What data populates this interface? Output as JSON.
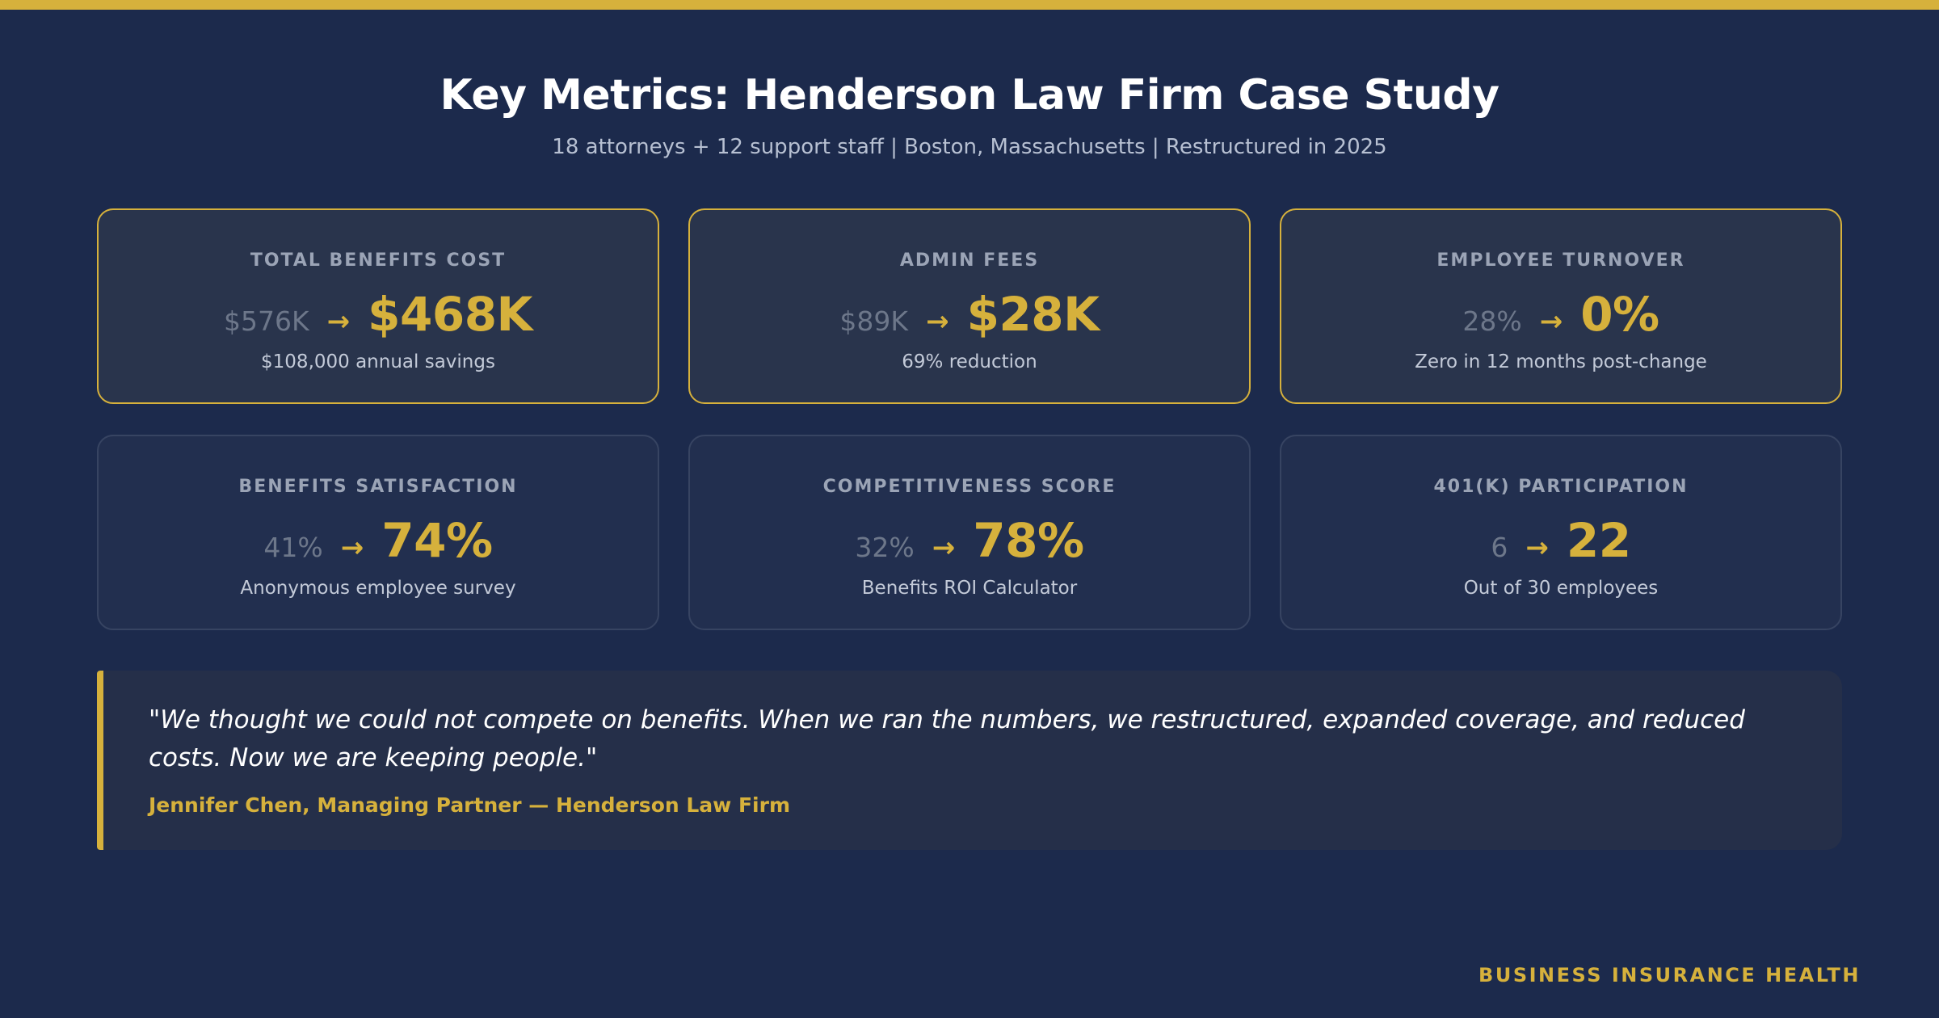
{
  "colors": {
    "background": "#1c2a4c",
    "accent": "#d6b13c",
    "highlight_card": "#29344c",
    "plain_card": "#222f4f"
  },
  "header": {
    "title": "Key Metrics: Henderson Law Firm Case Study",
    "subtitle": "18 attorneys + 12 support staff | Boston, Massachusetts | Restructured in 2025"
  },
  "metrics": [
    {
      "label": "TOTAL BENEFITS COST",
      "from": "$576K",
      "to": "$468K",
      "note": "$108,000 annual savings"
    },
    {
      "label": "ADMIN FEES",
      "from": "$89K",
      "to": "$28K",
      "note": "69% reduction"
    },
    {
      "label": "EMPLOYEE TURNOVER",
      "from": "28%",
      "to": "0%",
      "note": "Zero in 12 months post-change"
    },
    {
      "label": "BENEFITS SATISFACTION",
      "from": "41%",
      "to": "74%",
      "note": "Anonymous employee survey"
    },
    {
      "label": "COMPETITIVENESS SCORE",
      "from": "32%",
      "to": "78%",
      "note": "Benefits ROI Calculator"
    },
    {
      "label": "401(K) PARTICIPATION",
      "from": "6",
      "to": "22",
      "note": "Out of 30 employees"
    }
  ],
  "arrow_glyph": "→",
  "quote": {
    "text": "\"We thought we could not compete on benefits. When we ran the numbers, we restructured, expanded coverage, and reduced costs. Now we are keeping people.\"",
    "author": "Jennifer Chen, Managing Partner — Henderson Law Firm"
  },
  "brand": "BUSINESS INSURANCE HEALTH"
}
